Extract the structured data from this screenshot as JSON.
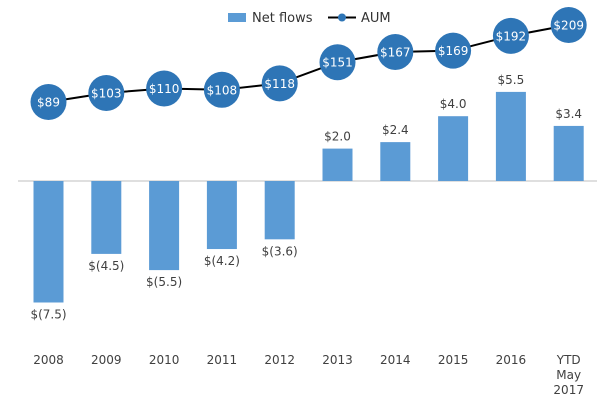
{
  "chart_data": {
    "type": "bar",
    "categories": [
      "2008",
      "2009",
      "2010",
      "2011",
      "2012",
      "2013",
      "2014",
      "2015",
      "2016",
      [
        "YTD",
        "May",
        "2017"
      ]
    ],
    "series": [
      {
        "name": "Net flows",
        "type": "bar",
        "values": [
          -7.5,
          -4.5,
          -5.5,
          -4.2,
          -3.6,
          2.0,
          2.4,
          4.0,
          5.5,
          3.4
        ],
        "labels": [
          "$(7.5)",
          "$(4.5)",
          "$(5.5)",
          "$(4.2)",
          "$(3.6)",
          "$2.0",
          "$2.4",
          "$4.0",
          "$5.5",
          "$3.4"
        ],
        "color": "#5b9bd5"
      },
      {
        "name": "AUM",
        "type": "line",
        "values": [
          89,
          103,
          110,
          108,
          118,
          151,
          167,
          169,
          192,
          209
        ],
        "labels": [
          "$89",
          "$103",
          "$110",
          "$108",
          "$118",
          "$151",
          "$167",
          "$169",
          "$192",
          "$209"
        ],
        "marker_color": "#2e75b6",
        "line_color": "#000000"
      }
    ],
    "legend_position": "top-center",
    "grid": false
  }
}
